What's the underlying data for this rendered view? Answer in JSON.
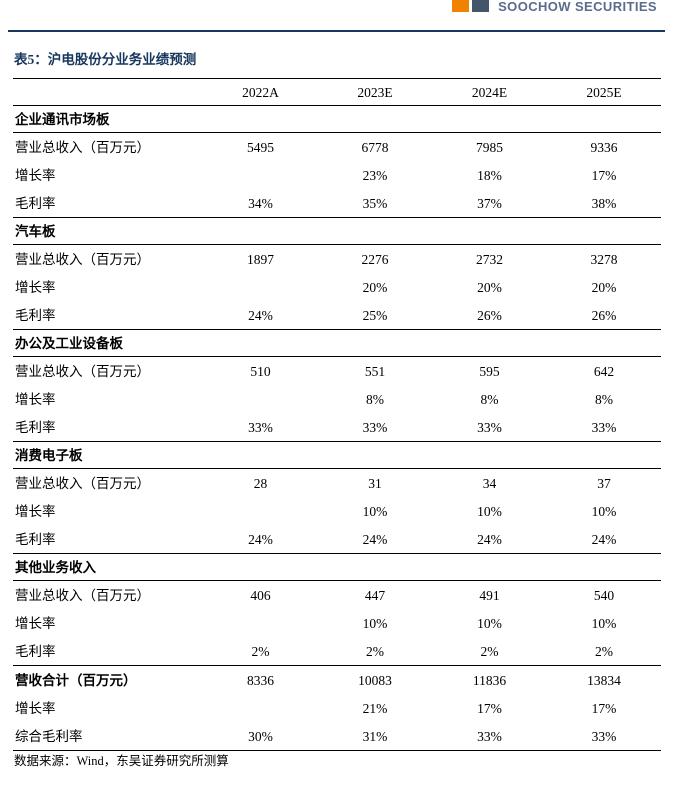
{
  "brand": {
    "name": "SOOCHOW SECURITIES"
  },
  "colors": {
    "accent_navy": "#17375e",
    "brand_text": "#5a6b8c",
    "brand_orange": "#ef8200",
    "brand_blue": "#44546a"
  },
  "table": {
    "title": "表5：沪电股份分业务业绩预测",
    "columns": [
      "2022A",
      "2023E",
      "2024E",
      "2025E"
    ],
    "sections": [
      {
        "name": "企业通讯市场板",
        "rows": [
          {
            "label": "营业总收入（百万元）",
            "values": [
              "5495",
              "6778",
              "7985",
              "9336"
            ]
          },
          {
            "label": "增长率",
            "values": [
              "",
              "23%",
              "18%",
              "17%"
            ]
          },
          {
            "label": "毛利率",
            "values": [
              "34%",
              "35%",
              "37%",
              "38%"
            ]
          }
        ]
      },
      {
        "name": "汽车板",
        "rows": [
          {
            "label": "营业总收入（百万元）",
            "values": [
              "1897",
              "2276",
              "2732",
              "3278"
            ]
          },
          {
            "label": "增长率",
            "values": [
              "",
              "20%",
              "20%",
              "20%"
            ]
          },
          {
            "label": "毛利率",
            "values": [
              "24%",
              "25%",
              "26%",
              "26%"
            ]
          }
        ]
      },
      {
        "name": "办公及工业设备板",
        "rows": [
          {
            "label": "营业总收入（百万元）",
            "values": [
              "510",
              "551",
              "595",
              "642"
            ]
          },
          {
            "label": "增长率",
            "values": [
              "",
              "8%",
              "8%",
              "8%"
            ]
          },
          {
            "label": "毛利率",
            "values": [
              "33%",
              "33%",
              "33%",
              "33%"
            ]
          }
        ]
      },
      {
        "name": "消费电子板",
        "rows": [
          {
            "label": "营业总收入（百万元）",
            "values": [
              "28",
              "31",
              "34",
              "37"
            ]
          },
          {
            "label": "增长率",
            "values": [
              "",
              "10%",
              "10%",
              "10%"
            ]
          },
          {
            "label": "毛利率",
            "values": [
              "24%",
              "24%",
              "24%",
              "24%"
            ]
          }
        ]
      },
      {
        "name": "其他业务收入",
        "rows": [
          {
            "label": "营业总收入（百万元）",
            "values": [
              "406",
              "447",
              "491",
              "540"
            ]
          },
          {
            "label": "增长率",
            "values": [
              "",
              "10%",
              "10%",
              "10%"
            ]
          },
          {
            "label": "毛利率",
            "values": [
              "2%",
              "2%",
              "2%",
              "2%"
            ]
          }
        ]
      }
    ],
    "summary": [
      {
        "label": "营收合计（百万元）",
        "values": [
          "8336",
          "10083",
          "11836",
          "13834"
        ],
        "bold": true
      },
      {
        "label": "增长率",
        "values": [
          "",
          "21%",
          "17%",
          "17%"
        ],
        "bold": false
      },
      {
        "label": "综合毛利率",
        "values": [
          "30%",
          "31%",
          "33%",
          "33%"
        ],
        "bold": false
      }
    ],
    "source": "数据来源：Wind，东吴证券研究所测算"
  }
}
